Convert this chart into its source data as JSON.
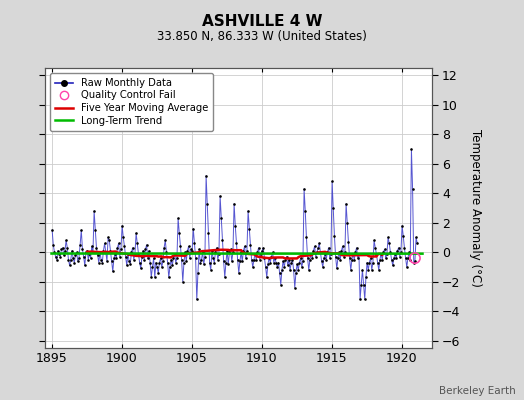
{
  "title": "ASHVILLE 4 W",
  "subtitle": "33.850 N, 86.333 W (United States)",
  "credit": "Berkeley Earth",
  "ylabel": "Temperature Anomaly (°C)",
  "xlim": [
    1894.5,
    1922.2
  ],
  "ylim": [
    -6.5,
    12.5
  ],
  "yticks": [
    -6,
    -4,
    -2,
    0,
    2,
    4,
    6,
    8,
    10,
    12
  ],
  "xticks": [
    1895,
    1900,
    1905,
    1910,
    1915,
    1920
  ],
  "outer_bg": "#d8d8d8",
  "plot_bg": "#ffffff",
  "raw_color": "#4444cc",
  "dot_color": "#000000",
  "moving_avg_color": "#dd0000",
  "trend_color": "#00bb00",
  "qc_fail_color": "#ff44aa",
  "legend_raw_color": "#2222bb",
  "legend_qc_color": "#ff44aa"
}
